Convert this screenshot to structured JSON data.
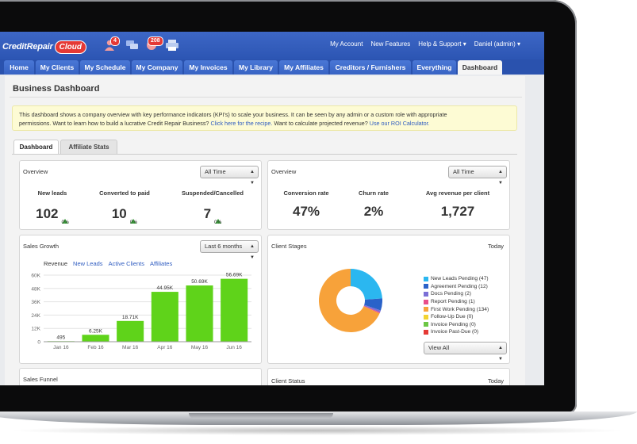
{
  "header": {
    "logo_text": "CreditRepair",
    "logo_cloud": "Cloud",
    "badge_alerts": "4",
    "badge_notifications": "208",
    "links": [
      "My Account",
      "New Features",
      "Help & Support ▾",
      "Daniel (admin) ▾"
    ]
  },
  "nav": {
    "tabs": [
      "Home",
      "My Clients",
      "My Schedule",
      "My Company",
      "My Invoices",
      "My Library",
      "My Affiliates",
      "Creditors / Furnishers",
      "Everything",
      "Dashboard"
    ],
    "active": "Dashboard"
  },
  "page": {
    "title": "Business Dashboard",
    "notice_1": "This dashboard shows a company overview with key performance indicators (KPI's) to scale your business. It can be seen by any admin or a custom role with appropriate",
    "notice_2a": "permissions. Want to learn how to build a lucrative Credit Repair Business?",
    "notice_link1": "Click here for the recipe.",
    "notice_2b": "Want to calculate projected revenue?",
    "notice_link2": "Use our ROI Calculator."
  },
  "subtabs": [
    "Dashboard",
    "Affiliate Stats"
  ],
  "overview_left": {
    "title": "Overview",
    "filter": "All Time",
    "kpis": [
      {
        "label": "New leads",
        "value": "102",
        "change": "0%"
      },
      {
        "label": "Converted to paid",
        "value": "10",
        "change": "0%"
      },
      {
        "label": "Suspended/Cancelled",
        "value": "7",
        "change": "0%"
      }
    ]
  },
  "overview_right": {
    "title": "Overview",
    "filter": "All Time",
    "kpis": [
      {
        "label": "Conversion rate",
        "value": "47%"
      },
      {
        "label": "Churn rate",
        "value": "2%"
      },
      {
        "label": "Avg revenue per client",
        "value": "1,727"
      }
    ]
  },
  "sales_growth": {
    "title": "Sales Growth",
    "filter": "Last 6 months",
    "series_tabs": [
      "Revenue",
      "New Leads",
      "Active Clients",
      "Affiliates"
    ]
  },
  "client_stages": {
    "title": "Client Stages",
    "period": "Today",
    "filter": "View All",
    "legend": [
      {
        "label": "New Leads Pending (47)",
        "color": "#2bb7f0"
      },
      {
        "label": "Agreement Pending (12)",
        "color": "#2a62c9"
      },
      {
        "label": "Docs Pending (2)",
        "color": "#7b6fd6"
      },
      {
        "label": "Report Pending (1)",
        "color": "#e94e8a"
      },
      {
        "label": "First Work Pending (134)",
        "color": "#f7a23a"
      },
      {
        "label": "Follow-Up Due (0)",
        "color": "#f2d330"
      },
      {
        "label": "Invoice Pending (0)",
        "color": "#6cc644"
      },
      {
        "label": "Invoice Past-Due (0)",
        "color": "#e53935"
      }
    ]
  },
  "sales_funnel": {
    "title": "Sales Funnel"
  },
  "client_status": {
    "title": "Client Status",
    "period": "Today"
  },
  "chart_data": {
    "type": "bar",
    "categories": [
      "Jan 16",
      "Feb 16",
      "Mar 16",
      "Apr 16",
      "May 16",
      "Jun 16"
    ],
    "values": [
      495,
      6250,
      18710,
      44950,
      50690,
      56690
    ],
    "data_labels": [
      "495",
      "6.25K",
      "18.71K",
      "44.95K",
      "50.69K",
      "56.69K"
    ],
    "yticks": [
      "0",
      "12K",
      "24K",
      "36K",
      "48K",
      "60K"
    ],
    "ylim": [
      0,
      60000
    ],
    "color": "#5fd31a",
    "grid": true
  },
  "stage_chart": {
    "type": "pie",
    "values": [
      47,
      12,
      2,
      1,
      134,
      0,
      0,
      0
    ],
    "colors": [
      "#2bb7f0",
      "#2a62c9",
      "#7b6fd6",
      "#e94e8a",
      "#f7a23a",
      "#f2d330",
      "#6cc644",
      "#e53935"
    ]
  }
}
